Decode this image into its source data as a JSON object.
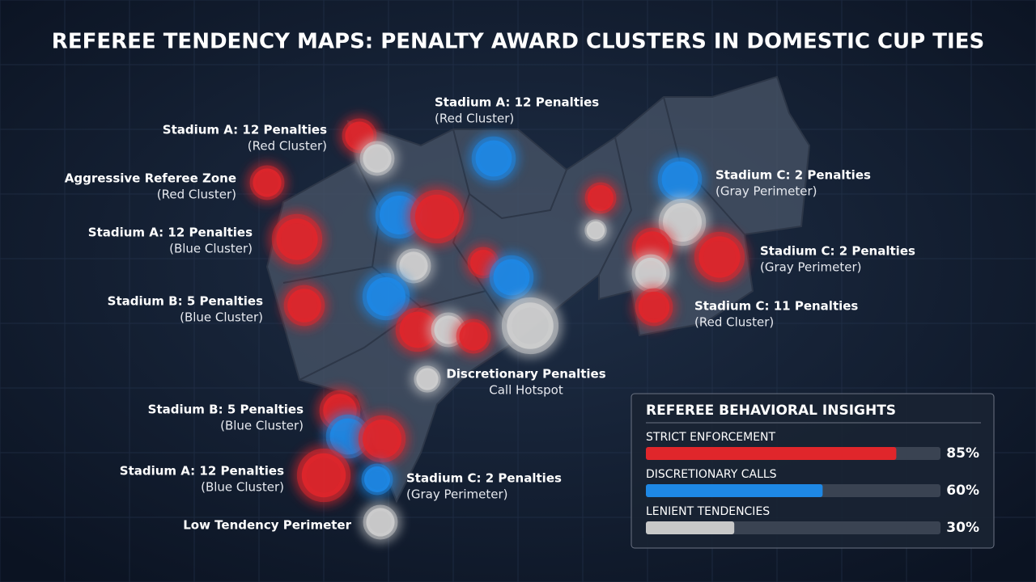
{
  "title": "REFEREE TENDENCY MAPS: PENALTY AWARD CLUSTERS IN DOMESTIC CUP TIES",
  "labels": [
    {
      "title": "Stadium A: 12 Penalties",
      "subtitle": "(Red Cluster)"
    },
    {
      "title": "Stadium A: 12 Penalties",
      "subtitle": "(Red Cluster)"
    },
    {
      "title": "Aggressive Referee Zone",
      "subtitle": "(Red Cluster)"
    },
    {
      "title": "Stadium A: 12 Penalties",
      "subtitle": "(Blue Cluster)"
    },
    {
      "title": "Stadium B: 5 Penalties",
      "subtitle": "(Blue Cluster)"
    },
    {
      "title": "Discretionary Penalties",
      "subtitle": "Call Hotspot"
    },
    {
      "title": "Stadium B: 5 Penalties",
      "subtitle": "(Blue Cluster)"
    },
    {
      "title": "Stadium A: 12 Penalties",
      "subtitle": "(Blue Cluster)"
    },
    {
      "title": "Low Tendency Perimeter"
    },
    {
      "title": "Stadium C: 2 Penalties",
      "subtitle": "(Gray Perimeter)"
    },
    {
      "title": "Stadium C: 2 Penalties",
      "subtitle": "(Gray Perimeter)"
    },
    {
      "title": "Stadium C: 2 Penalties",
      "subtitle": "(Gray Perimeter)"
    },
    {
      "title": "Stadium C: 11 Penalties",
      "subtitle": "(Red Cluster)"
    }
  ],
  "insights": {
    "title": "REFEREE BEHAVIORAL INSIGHTS",
    "xlim": [
      0,
      100
    ],
    "items": [
      {
        "label": "STRICT ENFORCEMENT",
        "value": 85,
        "value_label": "85%",
        "color": "#e0262b"
      },
      {
        "label": "DISCRETIONARY CALLS",
        "value": 60,
        "value_label": "60%",
        "color": "#1e88e5"
      },
      {
        "label": "LENIENT TENDENCIES",
        "value": 30,
        "value_label": "30%",
        "color": "#c8c8c8"
      }
    ]
  }
}
